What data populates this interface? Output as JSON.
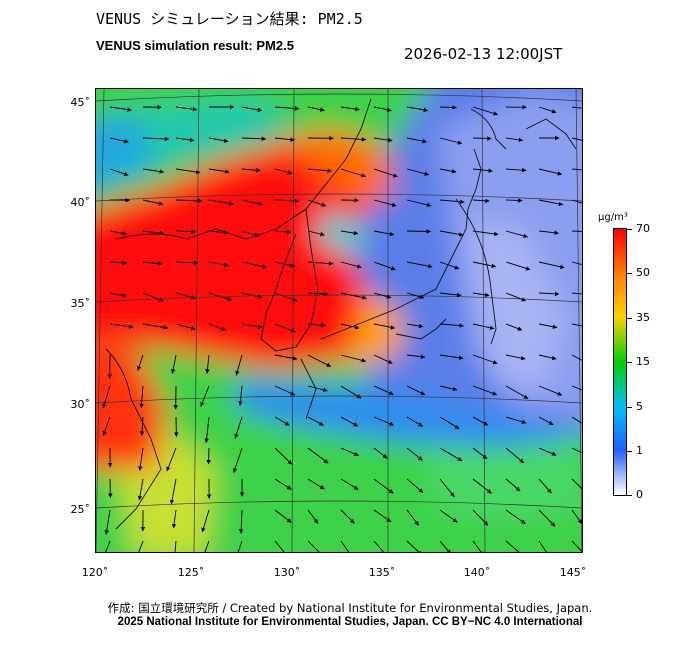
{
  "header": {
    "title_ja": "VENUS シミュレーション結果: PM2.5",
    "title_en": "VENUS simulation result: PM2.5",
    "timestamp": "2026-02-13 12:00JST"
  },
  "map": {
    "lat_labels": [
      "45˚",
      "40˚",
      "35˚",
      "30˚",
      "25˚"
    ],
    "lat_values": [
      45,
      40,
      35,
      30,
      25
    ],
    "lon_labels": [
      "120˚",
      "125˚",
      "130˚",
      "135˚",
      "140˚",
      "145˚"
    ],
    "lon_values": [
      120,
      125,
      130,
      135,
      140,
      145
    ],
    "lon_range": [
      120,
      145
    ],
    "lat_range": [
      23,
      46
    ]
  },
  "colorbar": {
    "unit": "μg/m³",
    "labels": [
      "70",
      "50",
      "35",
      "15",
      "5",
      "1",
      "0"
    ],
    "colors": [
      "#ff0000",
      "#ff8000",
      "#ffd000",
      "#00d000",
      "#00c0ff",
      "#2060ff",
      "#ffffff"
    ]
  },
  "footer": {
    "credit_ja": "作成: 国立環境研究所 / Created by National Institute for Environmental Studies, Japan.",
    "credit_en": "2025 National Institute for Environmental Studies, Japan. CC BY−NC 4.0 International"
  }
}
